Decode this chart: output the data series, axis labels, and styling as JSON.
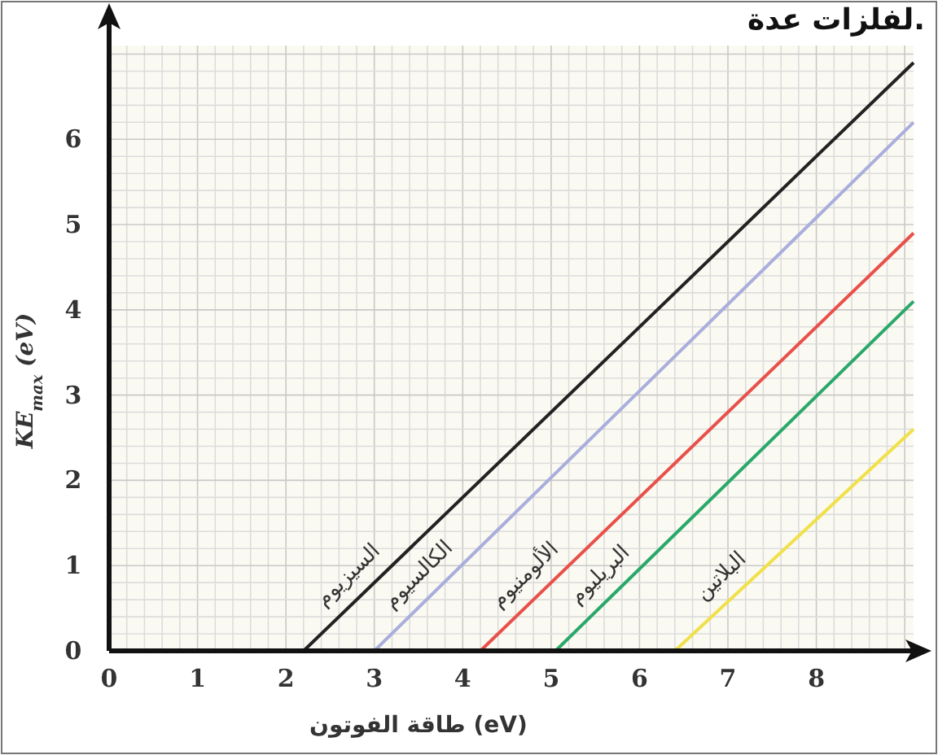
{
  "chart_data": {
    "type": "line",
    "title": "لفلزات عدة.",
    "xlabel": "طاقة الفوتون  (eV)",
    "ylabel": "KE$_{max}$ (eV)",
    "xlim": [
      0,
      9.1
    ],
    "ylim": [
      0,
      7.1
    ],
    "xticks": [
      0,
      1,
      2,
      3,
      4,
      5,
      6,
      7,
      8
    ],
    "yticks": [
      0,
      1,
      2,
      3,
      4,
      5,
      6
    ],
    "grid": true,
    "line_style": "solid",
    "series": [
      {
        "name": "السيزيوم",
        "color": "#222222",
        "x": [
          2.2,
          9.1
        ],
        "values": [
          0,
          6.9
        ]
      },
      {
        "name": "الكالسيوم",
        "color": "#a9aedc",
        "x": [
          3.0,
          9.1
        ],
        "values": [
          0,
          6.2
        ]
      },
      {
        "name": "الألومنيوم",
        "color": "#e8504a",
        "x": [
          4.2,
          9.1
        ],
        "values": [
          0,
          4.9
        ]
      },
      {
        "name": "البريليوم",
        "color": "#2aa86a",
        "x": [
          5.05,
          9.1
        ],
        "values": [
          0,
          4.1
        ]
      },
      {
        "name": "البلاتين",
        "color": "#f0e04a",
        "x": [
          6.4,
          9.1
        ],
        "values": [
          0,
          2.6
        ]
      }
    ]
  }
}
